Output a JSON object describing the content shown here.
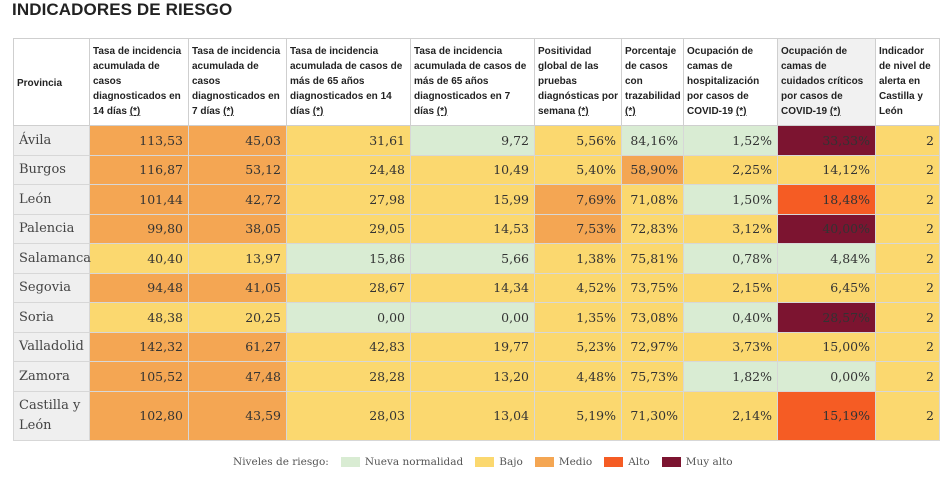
{
  "title": "INDICADORES DE RIESGO",
  "colors": {
    "nueva": "#d9ecd3",
    "bajo": "#fbd86f",
    "medio": "#f4a653",
    "alto": "#f55c24",
    "muyalto": "#7c1430"
  },
  "headers": [
    {
      "text": "Provincia",
      "link": ""
    },
    {
      "text": "Tasa de incidencia acumulada de casos diagnosticados en 14 días ",
      "link": "(*)"
    },
    {
      "text": "Tasa de incidencia acumulada de casos diagnosticados en 7 días ",
      "link": "(*)"
    },
    {
      "text": "Tasa de incidencia acumulada de casos de más de 65 años diagnosticados en 14 días ",
      "link": "(*)"
    },
    {
      "text": "Tasa de incidencia acumulada de casos de más de 65 años diagnosticados en 7 días ",
      "link": "(*)"
    },
    {
      "text": "Positividad global de las pruebas diagnósticas por semana ",
      "link": "(*)"
    },
    {
      "text": "Porcentaje de casos con trazabilidad ",
      "link": "(*)"
    },
    {
      "text": "Ocupación de camas de hospitalización por casos de COVID-19 ",
      "link": "(*)"
    },
    {
      "text": "Ocupación de camas de cuidados críticos por casos de COVID-19 ",
      "link": "(*)"
    },
    {
      "text": "Indicador de nivel de alerta en Castilla y León",
      "link": ""
    }
  ],
  "rows": [
    {
      "province": "Ávila",
      "cells": [
        {
          "v": "113,53",
          "lvl": "medio"
        },
        {
          "v": "45,03",
          "lvl": "medio"
        },
        {
          "v": "31,61",
          "lvl": "bajo"
        },
        {
          "v": "9,72",
          "lvl": "nueva"
        },
        {
          "v": "5,56%",
          "lvl": "bajo"
        },
        {
          "v": "84,16%",
          "lvl": "nueva"
        },
        {
          "v": "1,52%",
          "lvl": "nueva"
        },
        {
          "v": "33,33%",
          "lvl": "muyalto"
        },
        {
          "v": "2",
          "lvl": "bajo"
        }
      ]
    },
    {
      "province": "Burgos",
      "cells": [
        {
          "v": "116,87",
          "lvl": "medio"
        },
        {
          "v": "53,12",
          "lvl": "medio"
        },
        {
          "v": "24,48",
          "lvl": "bajo"
        },
        {
          "v": "10,49",
          "lvl": "bajo"
        },
        {
          "v": "5,40%",
          "lvl": "bajo"
        },
        {
          "v": "58,90%",
          "lvl": "medio"
        },
        {
          "v": "2,25%",
          "lvl": "bajo"
        },
        {
          "v": "14,12%",
          "lvl": "bajo"
        },
        {
          "v": "2",
          "lvl": "bajo"
        }
      ]
    },
    {
      "province": "León",
      "cells": [
        {
          "v": "101,44",
          "lvl": "medio"
        },
        {
          "v": "42,72",
          "lvl": "medio"
        },
        {
          "v": "27,98",
          "lvl": "bajo"
        },
        {
          "v": "15,99",
          "lvl": "bajo"
        },
        {
          "v": "7,69%",
          "lvl": "medio"
        },
        {
          "v": "71,08%",
          "lvl": "bajo"
        },
        {
          "v": "1,50%",
          "lvl": "nueva"
        },
        {
          "v": "18,48%",
          "lvl": "alto"
        },
        {
          "v": "2",
          "lvl": "bajo"
        }
      ]
    },
    {
      "province": "Palencia",
      "cells": [
        {
          "v": "99,80",
          "lvl": "medio"
        },
        {
          "v": "38,05",
          "lvl": "medio"
        },
        {
          "v": "29,05",
          "lvl": "bajo"
        },
        {
          "v": "14,53",
          "lvl": "bajo"
        },
        {
          "v": "7,53%",
          "lvl": "medio"
        },
        {
          "v": "72,83%",
          "lvl": "bajo"
        },
        {
          "v": "3,12%",
          "lvl": "bajo"
        },
        {
          "v": "40,00%",
          "lvl": "muyalto"
        },
        {
          "v": "2",
          "lvl": "bajo"
        }
      ]
    },
    {
      "province": "Salamanca",
      "cells": [
        {
          "v": "40,40",
          "lvl": "bajo"
        },
        {
          "v": "13,97",
          "lvl": "bajo"
        },
        {
          "v": "15,86",
          "lvl": "nueva"
        },
        {
          "v": "5,66",
          "lvl": "nueva"
        },
        {
          "v": "1,38%",
          "lvl": "bajo"
        },
        {
          "v": "75,81%",
          "lvl": "bajo"
        },
        {
          "v": "0,78%",
          "lvl": "nueva"
        },
        {
          "v": "4,84%",
          "lvl": "nueva"
        },
        {
          "v": "2",
          "lvl": "bajo"
        }
      ]
    },
    {
      "province": "Segovia",
      "cells": [
        {
          "v": "94,48",
          "lvl": "medio"
        },
        {
          "v": "41,05",
          "lvl": "medio"
        },
        {
          "v": "28,67",
          "lvl": "bajo"
        },
        {
          "v": "14,34",
          "lvl": "bajo"
        },
        {
          "v": "4,52%",
          "lvl": "bajo"
        },
        {
          "v": "73,75%",
          "lvl": "bajo"
        },
        {
          "v": "2,15%",
          "lvl": "bajo"
        },
        {
          "v": "6,45%",
          "lvl": "bajo"
        },
        {
          "v": "2",
          "lvl": "bajo"
        }
      ]
    },
    {
      "province": "Soria",
      "cells": [
        {
          "v": "48,38",
          "lvl": "bajo"
        },
        {
          "v": "20,25",
          "lvl": "bajo"
        },
        {
          "v": "0,00",
          "lvl": "nueva"
        },
        {
          "v": "0,00",
          "lvl": "nueva"
        },
        {
          "v": "1,35%",
          "lvl": "bajo"
        },
        {
          "v": "73,08%",
          "lvl": "bajo"
        },
        {
          "v": "0,40%",
          "lvl": "nueva"
        },
        {
          "v": "28,57%",
          "lvl": "muyalto"
        },
        {
          "v": "2",
          "lvl": "bajo"
        }
      ]
    },
    {
      "province": "Valladolid",
      "cells": [
        {
          "v": "142,32",
          "lvl": "medio"
        },
        {
          "v": "61,27",
          "lvl": "medio"
        },
        {
          "v": "42,83",
          "lvl": "bajo"
        },
        {
          "v": "19,77",
          "lvl": "bajo"
        },
        {
          "v": "5,23%",
          "lvl": "bajo"
        },
        {
          "v": "72,97%",
          "lvl": "bajo"
        },
        {
          "v": "3,73%",
          "lvl": "bajo"
        },
        {
          "v": "15,00%",
          "lvl": "bajo"
        },
        {
          "v": "2",
          "lvl": "bajo"
        }
      ]
    },
    {
      "province": "Zamora",
      "cells": [
        {
          "v": "105,52",
          "lvl": "medio"
        },
        {
          "v": "47,48",
          "lvl": "medio"
        },
        {
          "v": "28,28",
          "lvl": "bajo"
        },
        {
          "v": "13,20",
          "lvl": "bajo"
        },
        {
          "v": "4,48%",
          "lvl": "bajo"
        },
        {
          "v": "75,73%",
          "lvl": "bajo"
        },
        {
          "v": "1,82%",
          "lvl": "nueva"
        },
        {
          "v": "0,00%",
          "lvl": "nueva"
        },
        {
          "v": "2",
          "lvl": "bajo"
        }
      ]
    },
    {
      "province": "Castilla y León",
      "cells": [
        {
          "v": "102,80",
          "lvl": "medio"
        },
        {
          "v": "43,59",
          "lvl": "medio"
        },
        {
          "v": "28,03",
          "lvl": "bajo"
        },
        {
          "v": "13,04",
          "lvl": "bajo"
        },
        {
          "v": "5,19%",
          "lvl": "bajo"
        },
        {
          "v": "71,30%",
          "lvl": "bajo"
        },
        {
          "v": "2,14%",
          "lvl": "bajo"
        },
        {
          "v": "15,19%",
          "lvl": "alto"
        },
        {
          "v": "2",
          "lvl": "bajo"
        }
      ]
    }
  ],
  "legend": {
    "lead": "Niveles de riesgo:",
    "items": [
      {
        "label": "Nueva normalidad",
        "lvl": "nueva"
      },
      {
        "label": "Bajo",
        "lvl": "bajo"
      },
      {
        "label": "Medio",
        "lvl": "medio"
      },
      {
        "label": "Alto",
        "lvl": "alto"
      },
      {
        "label": "Muy alto",
        "lvl": "muyalto"
      }
    ]
  }
}
